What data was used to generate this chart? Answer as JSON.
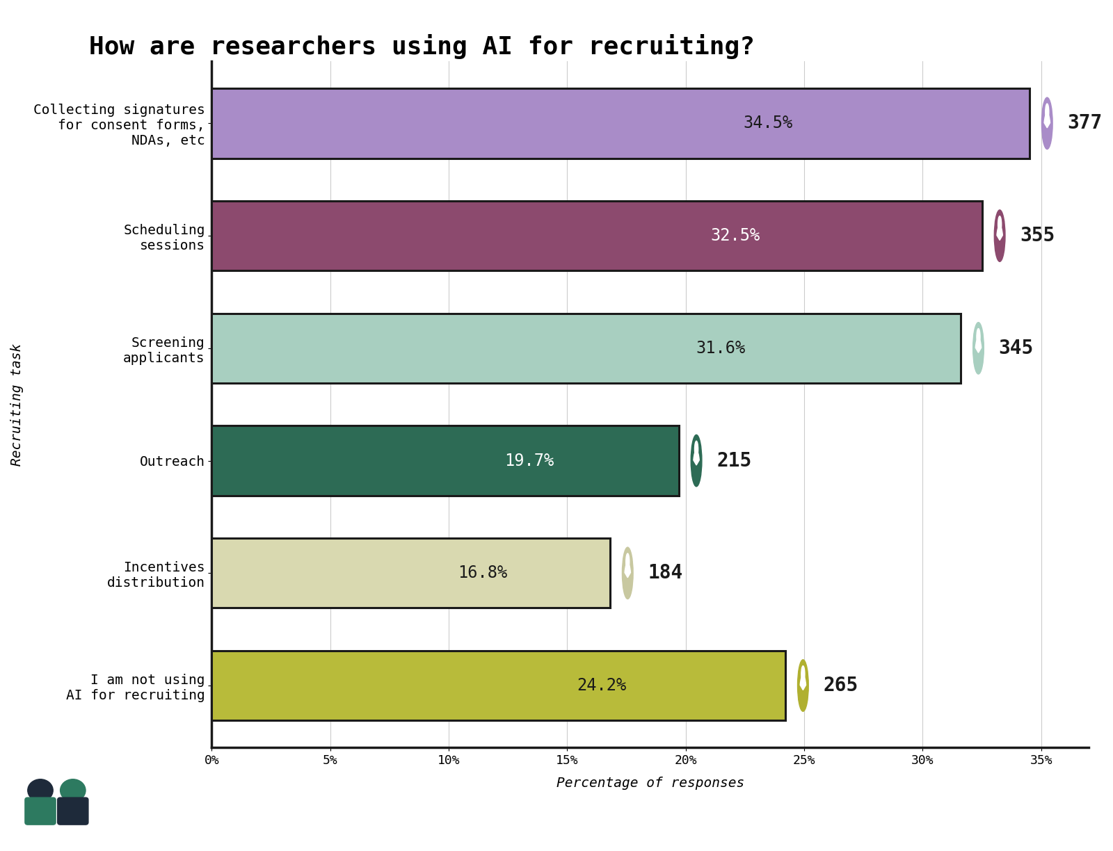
{
  "title": "How are researchers using AI for recruiting?",
  "categories": [
    "Collecting signatures\nfor consent forms,\nNDAs, etc",
    "Scheduling\nsessions",
    "Screening\napplicants",
    "Outreach",
    "Incentives\ndistribution",
    "I am not using\nAI for recruiting"
  ],
  "values": [
    34.5,
    32.5,
    31.6,
    19.7,
    16.8,
    24.2
  ],
  "counts": [
    377,
    355,
    345,
    215,
    184,
    265
  ],
  "bar_colors": [
    "#a98cc8",
    "#8c4a6e",
    "#a8cfc0",
    "#2d6b55",
    "#d9d9b0",
    "#b8bb3a"
  ],
  "bar_edge_color": "#1a1a1a",
  "pct_label_colors": [
    "#1a1a1a",
    "#ffffff",
    "#1a1a1a",
    "#ffffff",
    "#1a1a1a",
    "#1a1a1a"
  ],
  "icon_colors": [
    "#a98cc8",
    "#8c4a6e",
    "#a8cfc0",
    "#2d6b55",
    "#c8c8a0",
    "#b0b030"
  ],
  "background_color": "#ffffff",
  "xlabel": "Percentage of responses",
  "ylabel": "Recruiting task",
  "xlim": [
    0,
    37
  ],
  "xticks": [
    0,
    5,
    10,
    15,
    20,
    25,
    30,
    35
  ],
  "xtick_labels": [
    "0%",
    "5%",
    "10%",
    "15%",
    "20%",
    "25%",
    "30%",
    "35%"
  ],
  "title_fontsize": 26,
  "label_fontsize": 14,
  "tick_fontsize": 13,
  "axis_label_fontsize": 14,
  "count_fontsize": 20,
  "pct_fontsize": 17
}
